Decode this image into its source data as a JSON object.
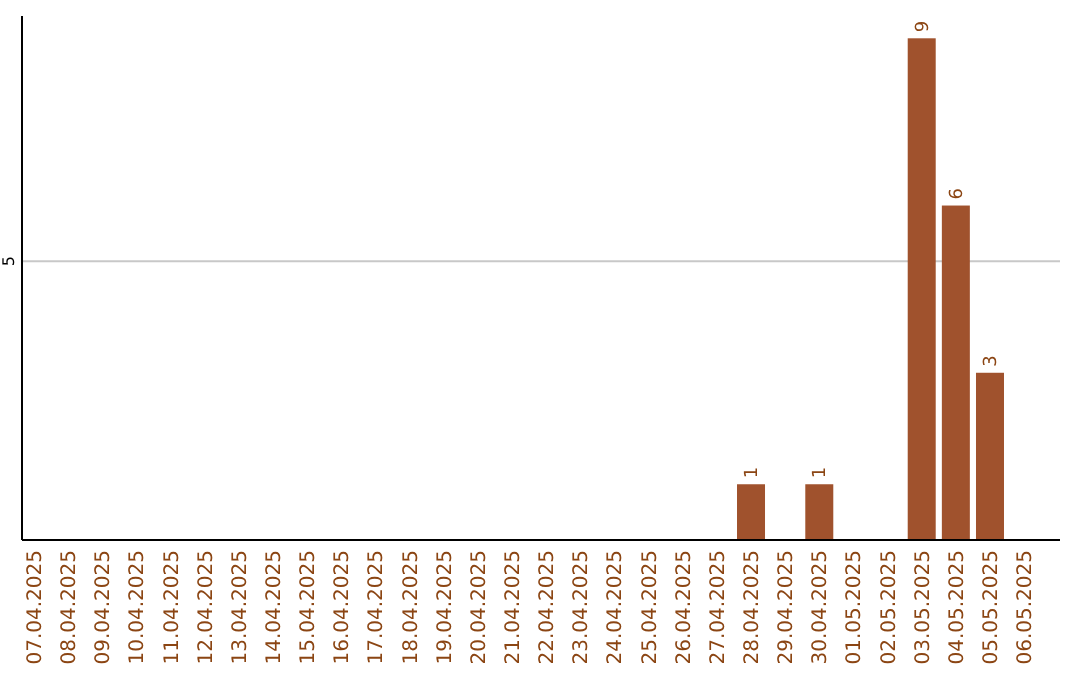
{
  "chart_data": {
    "type": "bar",
    "categories": [
      "07.04.2025",
      "08.04.2025",
      "09.04.2025",
      "10.04.2025",
      "11.04.2025",
      "12.04.2025",
      "13.04.2025",
      "14.04.2025",
      "15.04.2025",
      "16.04.2025",
      "17.04.2025",
      "18.04.2025",
      "19.04.2025",
      "20.04.2025",
      "21.04.2025",
      "22.04.2025",
      "23.04.2025",
      "24.04.2025",
      "25.04.2025",
      "26.04.2025",
      "27.04.2025",
      "28.04.2025",
      "29.04.2025",
      "30.04.2025",
      "01.05.2025",
      "02.05.2025",
      "03.05.2025",
      "04.05.2025",
      "05.05.2025",
      "06.05.2025"
    ],
    "values": [
      null,
      null,
      null,
      null,
      null,
      null,
      null,
      null,
      null,
      null,
      null,
      null,
      null,
      null,
      null,
      null,
      null,
      null,
      null,
      null,
      null,
      1,
      null,
      1,
      null,
      null,
      9,
      6,
      3,
      null
    ],
    "data_labels": true,
    "color": "#a0522d",
    "ylim": [
      0,
      9.4
    ],
    "ref_lines": [
      {
        "axis": "y",
        "value": 5,
        "label": "5",
        "color": "#c8c8c8"
      }
    ]
  }
}
